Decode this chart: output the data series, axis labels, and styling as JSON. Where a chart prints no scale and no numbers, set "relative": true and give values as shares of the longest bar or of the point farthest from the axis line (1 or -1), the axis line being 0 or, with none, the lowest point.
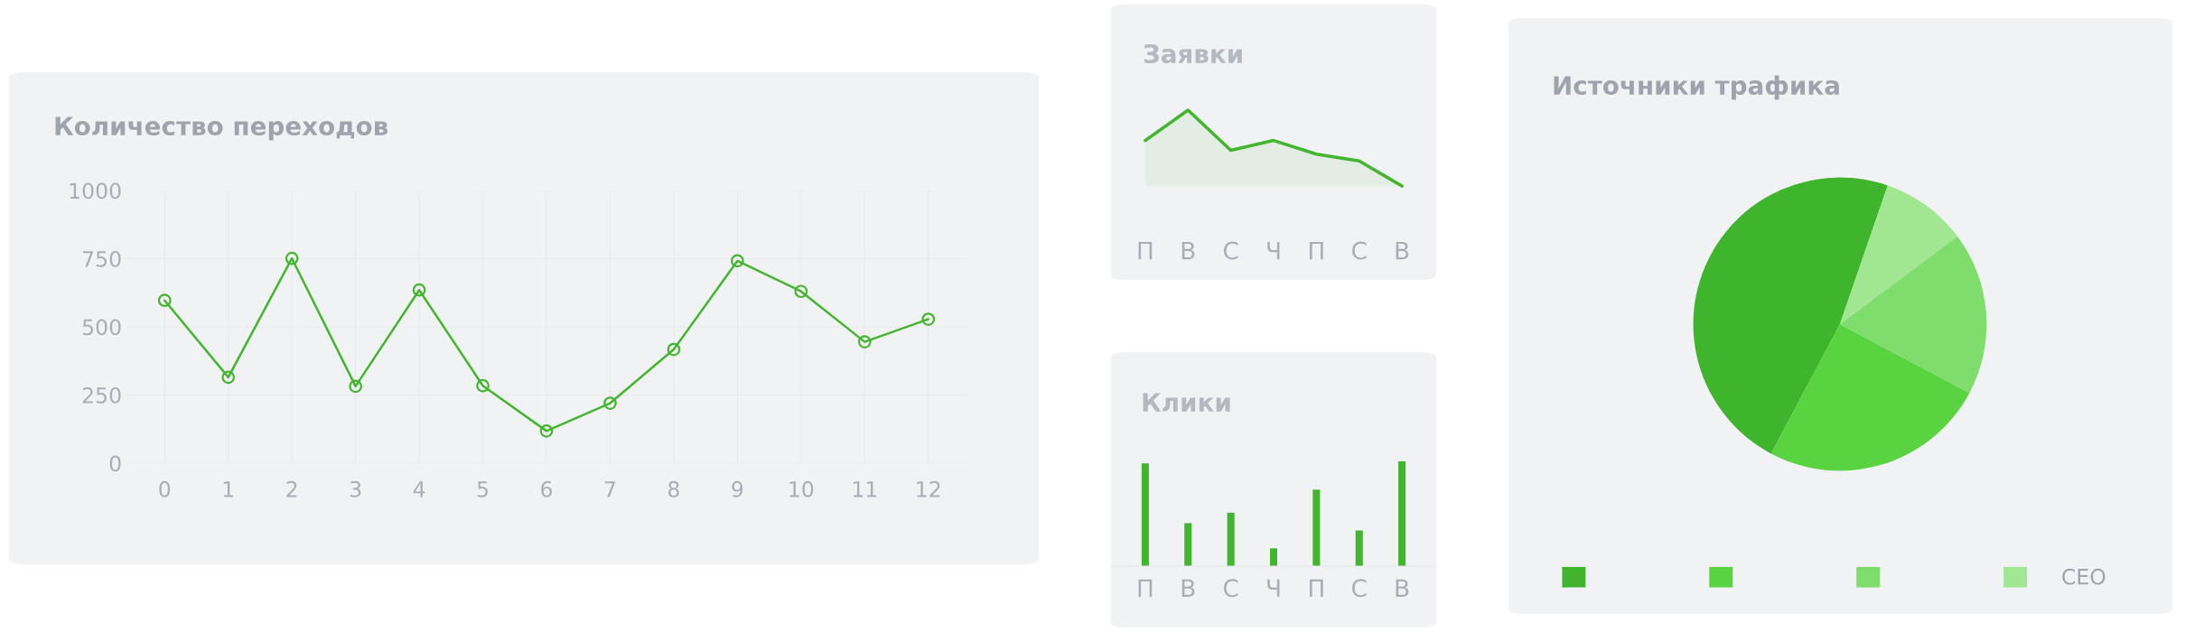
{
  "chart_data": [
    {
      "type": "line",
      "title": "Количество переходов",
      "categories": [
        "0",
        "1",
        "2",
        "3",
        "4",
        "5",
        "6",
        "7",
        "8",
        "9",
        "10",
        "11",
        "12"
      ],
      "values": [
        597,
        315,
        751,
        282,
        635,
        284,
        118,
        220,
        417,
        742,
        630,
        445,
        528
      ],
      "color": "#44b52e",
      "marker": "circle",
      "ylim": [
        0,
        1000
      ],
      "yticks": [
        0,
        250,
        500,
        750,
        1000
      ],
      "grid": true
    },
    {
      "type": "area",
      "title": "Заявки",
      "relative": true,
      "categories": [
        "П",
        "В",
        "С",
        "Ч",
        "П",
        "С",
        "В"
      ],
      "values": [
        0.6,
        1.0,
        0.47,
        0.6,
        0.42,
        0.33,
        0
      ],
      "color": "#44b52e"
    },
    {
      "type": "bar",
      "title": "Клики",
      "relative": true,
      "categories": [
        "П",
        "В",
        "С",
        "Ч",
        "П",
        "С",
        "В"
      ],
      "values": [
        0.98,
        0.41,
        0.51,
        0.17,
        0.73,
        0.34,
        1.0
      ],
      "color": "#41b52d"
    },
    {
      "type": "pie",
      "title": "Источники трафика",
      "categories": [
        null,
        null,
        null,
        "СЕО"
      ],
      "values": [
        47.5,
        25,
        18,
        9.5
      ],
      "colors": [
        "#3fb42d",
        "#5ad341",
        "#7fdd6c",
        "#a1e690"
      ],
      "legend": "bottom"
    }
  ]
}
